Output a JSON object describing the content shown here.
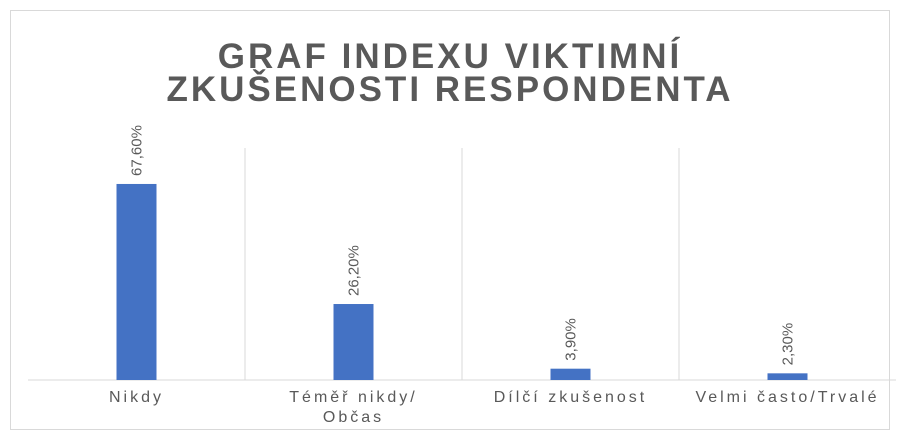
{
  "chart_data": {
    "type": "bar",
    "title": "GRAF INDEXU VIKTIMNÍ ZKUŠENOSTI RESPONDENTA",
    "categories": [
      "Nikdy",
      "Téměř nikdy/ Občas",
      "Dílčí zkušenost",
      "Velmi často/Trvalé"
    ],
    "values": [
      67.6,
      26.2,
      3.9,
      2.3
    ],
    "value_labels": [
      "67,60%",
      "26,20%",
      "3,90%",
      "2,30%"
    ],
    "color": "#4472c4",
    "ylim": [
      0,
      80
    ]
  }
}
